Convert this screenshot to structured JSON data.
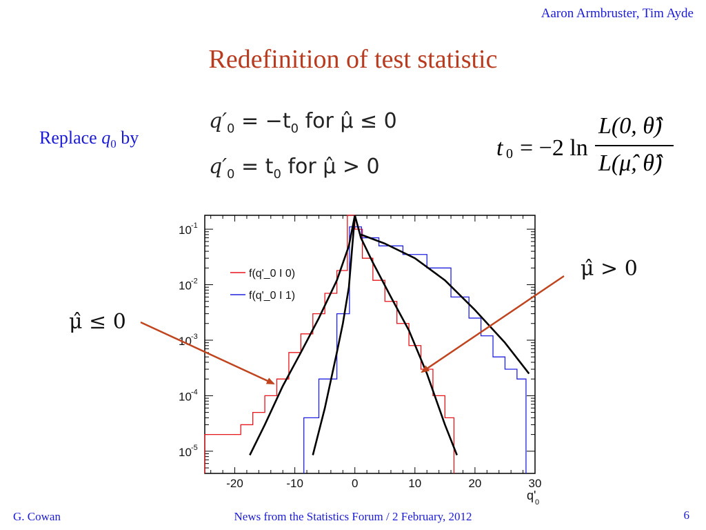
{
  "slide": {
    "authors": "Aaron Armbruster, Tim Ayde",
    "title": "Redefinition of test statistic",
    "replace_prefix": "Replace",
    "replace_var": "q",
    "replace_sub": "0",
    "replace_suffix": "by",
    "formula_1_lhs": "q′",
    "formula_1_sub": "0",
    "formula_1_rhs": " = −t",
    "formula_1_rhs_sub": "0",
    "formula_1_cond": " for μ̂ ≤ 0",
    "formula_2_lhs": "q′",
    "formula_2_sub": "0",
    "formula_2_rhs": " = t",
    "formula_2_rhs_sub": "0",
    "formula_2_cond": " for μ̂ > 0",
    "tdef_lhs": "t",
    "tdef_lhs_sub": "0",
    "tdef_op": "= −2 ln",
    "tdef_num": "L(0, θ̂̂)",
    "tdef_den": "L(μ̂, θ̂)",
    "label_left": "μ̂ ≤ 0",
    "label_right": "μ̂ > 0",
    "footer_left": "G. Cowan",
    "footer_mid": "News from the Statistics Forum / 2 February, 2012",
    "footer_num": "6"
  },
  "colors": {
    "title": "#b83a1f",
    "text_blue": "#1a1ad6",
    "series_red": "#e8141a",
    "series_blue": "#2020e0",
    "fit": "#000000",
    "arrow": "#c0441e"
  },
  "chart_data": {
    "type": "line",
    "xlabel": "q'0",
    "ylabel": "",
    "xlim": [
      -25,
      30
    ],
    "ylim_log10": [
      -5.4,
      -0.75
    ],
    "y_scale": "log",
    "x_ticks": [
      -20,
      -10,
      0,
      10,
      20,
      30
    ],
    "y_ticks": [
      {
        "exp": -1,
        "label": "10",
        "sup": "-1"
      },
      {
        "exp": -2,
        "label": "10",
        "sup": "-2"
      },
      {
        "exp": -3,
        "label": "10",
        "sup": "-3"
      },
      {
        "exp": -4,
        "label": "10",
        "sup": "-4"
      },
      {
        "exp": -5,
        "label": "10",
        "sup": "-5"
      }
    ],
    "legend_position": "top-left",
    "series": [
      {
        "name": "f(q'_0 | 0)",
        "color": "red",
        "style": "histogram",
        "x": [
          -24.5,
          -22,
          -20,
          -18,
          -16,
          -14,
          -12,
          -10,
          -8,
          -6,
          -4,
          -2,
          -0.5,
          0.5,
          2,
          4,
          6,
          8,
          10,
          12,
          14,
          16
        ],
        "y": [
          2e-05,
          2e-05,
          2e-05,
          3e-05,
          5e-05,
          0.0001,
          0.0002,
          0.0006,
          0.0013,
          0.003,
          0.007,
          0.018,
          0.2,
          0.1,
          0.03,
          0.012,
          0.005,
          0.002,
          0.0008,
          0.0003,
          0.0001,
          4e-05
        ]
      },
      {
        "name": "f(q'_0 | 1)",
        "color": "blue",
        "style": "histogram",
        "x": [
          -8,
          -4,
          -2,
          0.2,
          2,
          6,
          10,
          14,
          18,
          20,
          22,
          24,
          26,
          28
        ],
        "y": [
          4e-05,
          0.0002,
          0.003,
          0.11,
          0.07,
          0.05,
          0.035,
          0.02,
          0.006,
          0.0025,
          0.0012,
          0.0005,
          0.0003,
          0.0002
        ]
      },
      {
        "name": "fit mu-hat <= 0 (f|0)",
        "color": "black",
        "style": "line",
        "x": [
          -17.5,
          -15,
          -12,
          -9,
          -6,
          -3,
          -1,
          0
        ],
        "y": [
          8.5e-06,
          3e-05,
          0.00015,
          0.0006,
          0.0025,
          0.012,
          0.05,
          0.25
        ]
      },
      {
        "name": "fit mu-hat > 0 (f|0)",
        "color": "black",
        "style": "line",
        "x": [
          0,
          1,
          3,
          6,
          9,
          12,
          15,
          17
        ],
        "y": [
          0.25,
          0.07,
          0.025,
          0.006,
          0.0015,
          0.00025,
          3e-05,
          8.5e-06
        ]
      },
      {
        "name": "fit f|1 rising",
        "color": "black",
        "style": "line",
        "x": [
          -7,
          -5,
          -3,
          -2,
          -1,
          0
        ],
        "y": [
          8.5e-06,
          6e-05,
          0.0006,
          0.002,
          0.009,
          0.2
        ]
      },
      {
        "name": "fit f|1 falling",
        "color": "black",
        "style": "line",
        "x": [
          1,
          5,
          10,
          15,
          20,
          25,
          29
        ],
        "y": [
          0.08,
          0.055,
          0.03,
          0.012,
          0.0035,
          0.0009,
          0.00025
        ]
      }
    ]
  }
}
